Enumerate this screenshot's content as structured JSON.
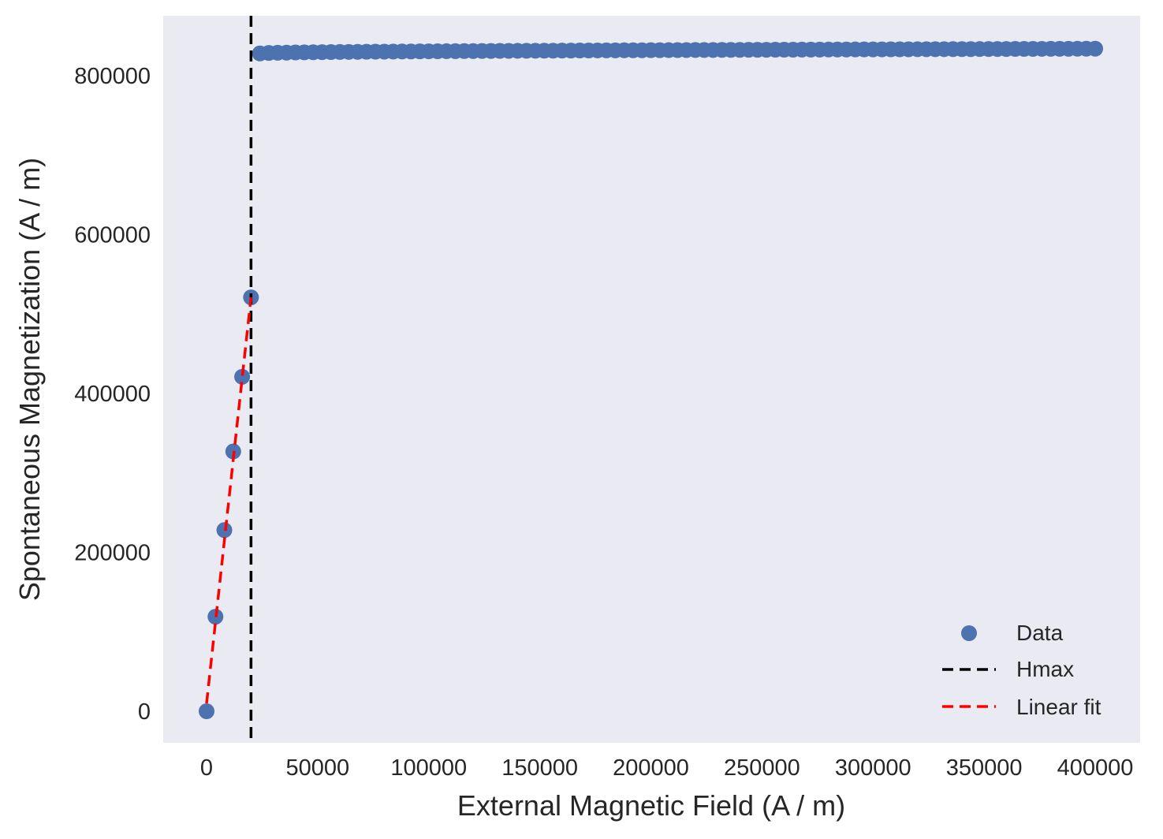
{
  "chart_data": {
    "type": "scatter",
    "title": "",
    "xlabel": "External Magnetic Field (A / m)",
    "ylabel": "Spontaneous Magnetization (A / m)",
    "xlim": [
      -20000,
      420000
    ],
    "ylim": [
      -40000,
      870000
    ],
    "xticks": [
      0,
      50000,
      100000,
      150000,
      200000,
      250000,
      300000,
      350000,
      400000
    ],
    "xtick_labels": [
      "0",
      "50000",
      "100000",
      "150000",
      "200000",
      "250000",
      "300000",
      "350000",
      "400000"
    ],
    "yticks": [
      0,
      200000,
      400000,
      600000,
      800000
    ],
    "ytick_labels": [
      "0",
      "200000",
      "400000",
      "600000",
      "800000"
    ],
    "grid": false,
    "background": "#eaeaf2",
    "legend_position": "lower right",
    "series": [
      {
        "name": "Data",
        "kind": "scatter",
        "color": "#4c72b0",
        "linear_region": {
          "x": [
            0,
            4000,
            8000,
            12000,
            16000,
            20000
          ],
          "y": [
            0,
            119000,
            228000,
            327000,
            421000,
            521000
          ]
        },
        "saturated_region": {
          "x_start": 24000,
          "x_end": 400000,
          "x_step": 4000,
          "y_start": 828000,
          "y_end": 834000
        }
      },
      {
        "name": "Hmax",
        "kind": "vline",
        "color": "#000000",
        "linestyle": "dashed",
        "x": 20000
      },
      {
        "name": "Linear fit",
        "kind": "line",
        "color": "#ff0000",
        "linestyle": "dashed",
        "x": [
          0,
          20000
        ],
        "y": [
          10000,
          521000
        ]
      }
    ],
    "legend": [
      "Data",
      "Hmax",
      "Linear fit"
    ]
  }
}
